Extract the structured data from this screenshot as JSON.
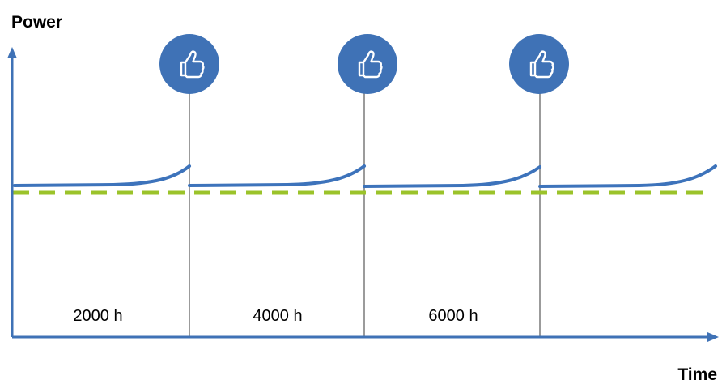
{
  "diagram": {
    "y_axis_title": "Power",
    "x_axis_title": "Time",
    "periods": [
      {
        "label": "2000 h",
        "icon": "thumbs-up-icon"
      },
      {
        "label": "4000 h",
        "icon": "thumbs-up-icon"
      },
      {
        "label": "6000 h",
        "icon": "thumbs-up-icon"
      }
    ],
    "colors": {
      "axis": "#3f72b6",
      "power_curve": "#3d73bb",
      "threshold_line": "#9bc32a",
      "divider": "#9b9b9b",
      "badge_fill": "#3f72b6",
      "badge_icon": "#ffffff"
    }
  }
}
